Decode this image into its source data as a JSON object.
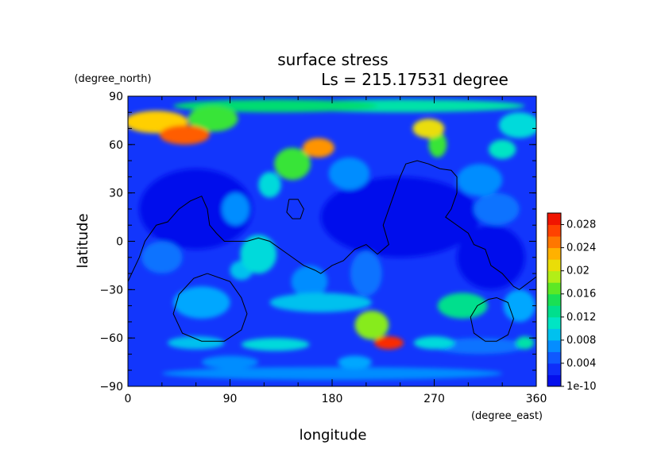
{
  "chart_data": {
    "type": "heatmap",
    "title": "surface stress",
    "subtitle": "Ls = 215.17531 degree",
    "xlabel": "longitude",
    "ylabel": "latitude",
    "x_unit": "(degree_east)",
    "y_unit": "(degree_north)",
    "xlim": [
      0,
      360
    ],
    "ylim": [
      -90,
      90
    ],
    "x_ticks": [
      "0",
      "90",
      "180",
      "270",
      "360"
    ],
    "y_ticks": [
      "90",
      "60",
      "30",
      "0",
      "−30",
      "−60",
      "−90"
    ],
    "x_tick_values": [
      0,
      90,
      180,
      270,
      360
    ],
    "y_tick_values": [
      90,
      60,
      30,
      0,
      -30,
      -60,
      -90
    ],
    "colorbar": {
      "min": 0,
      "max": 0.03,
      "labels": [
        "0.028",
        "0.024",
        "0.02",
        "0.016",
        "0.012",
        "0.008",
        "0.004",
        "1e-10"
      ],
      "label_values": [
        0.028,
        0.024,
        0.02,
        0.016,
        0.012,
        0.008,
        0.004,
        0
      ]
    },
    "background_value": 0.0035,
    "features": [
      {
        "lon": 25,
        "lat": 74,
        "value": 0.022,
        "rlon": 28,
        "rlat": 7
      },
      {
        "lon": 50,
        "lat": 66,
        "value": 0.026,
        "rlon": 22,
        "rlat": 6
      },
      {
        "lon": 75,
        "lat": 76,
        "value": 0.016,
        "rlon": 22,
        "rlat": 8
      },
      {
        "lon": 130,
        "lat": 84,
        "value": 0.014,
        "rlon": 90,
        "rlat": 4
      },
      {
        "lon": 240,
        "lat": 84,
        "value": 0.012,
        "rlon": 110,
        "rlat": 4
      },
      {
        "lon": 265,
        "lat": 70,
        "value": 0.021,
        "rlon": 14,
        "rlat": 6
      },
      {
        "lon": 273,
        "lat": 60,
        "value": 0.016,
        "rlon": 8,
        "rlat": 8
      },
      {
        "lon": 345,
        "lat": 72,
        "value": 0.01,
        "rlon": 18,
        "rlat": 8
      },
      {
        "lon": 330,
        "lat": 57,
        "value": 0.011,
        "rlon": 12,
        "rlat": 6
      },
      {
        "lon": 168,
        "lat": 58,
        "value": 0.024,
        "rlon": 14,
        "rlat": 6
      },
      {
        "lon": 145,
        "lat": 48,
        "value": 0.016,
        "rlon": 16,
        "rlat": 10
      },
      {
        "lon": 125,
        "lat": 35,
        "value": 0.01,
        "rlon": 10,
        "rlat": 8
      },
      {
        "lon": 195,
        "lat": 42,
        "value": 0.007,
        "rlon": 18,
        "rlat": 10
      },
      {
        "lon": 310,
        "lat": 38,
        "value": 0.007,
        "rlon": 20,
        "rlat": 10
      },
      {
        "lon": 95,
        "lat": 20,
        "value": 0.007,
        "rlon": 12,
        "rlat": 10
      },
      {
        "lon": 115,
        "lat": -8,
        "value": 0.01,
        "rlon": 16,
        "rlat": 12
      },
      {
        "lon": 100,
        "lat": -18,
        "value": 0.009,
        "rlon": 10,
        "rlat": 6
      },
      {
        "lon": 160,
        "lat": -25,
        "value": 0.007,
        "rlon": 16,
        "rlat": 10
      },
      {
        "lon": 210,
        "lat": -20,
        "value": 0.006,
        "rlon": 14,
        "rlat": 14
      },
      {
        "lon": 325,
        "lat": 20,
        "value": 0.006,
        "rlon": 20,
        "rlat": 10
      },
      {
        "lon": 30,
        "lat": -10,
        "value": 0.006,
        "rlon": 18,
        "rlat": 10
      },
      {
        "lon": 65,
        "lat": -38,
        "value": 0.008,
        "rlon": 25,
        "rlat": 10
      },
      {
        "lon": 170,
        "lat": -38,
        "value": 0.009,
        "rlon": 45,
        "rlat": 6
      },
      {
        "lon": 215,
        "lat": -52,
        "value": 0.018,
        "rlon": 15,
        "rlat": 9
      },
      {
        "lon": 230,
        "lat": -63,
        "value": 0.028,
        "rlon": 13,
        "rlat": 4
      },
      {
        "lon": 295,
        "lat": -40,
        "value": 0.013,
        "rlon": 22,
        "rlat": 8
      },
      {
        "lon": 345,
        "lat": -40,
        "value": 0.008,
        "rlon": 14,
        "rlat": 10
      },
      {
        "lon": 310,
        "lat": -65,
        "value": 0.006,
        "rlon": 40,
        "rlat": 5
      },
      {
        "lon": 60,
        "lat": -63,
        "value": 0.009,
        "rlon": 25,
        "rlat": 4
      },
      {
        "lon": 130,
        "lat": -64,
        "value": 0.01,
        "rlon": 30,
        "rlat": 4
      },
      {
        "lon": 270,
        "lat": -63,
        "value": 0.01,
        "rlon": 18,
        "rlat": 4
      },
      {
        "lon": 350,
        "lat": -63,
        "value": 0.012,
        "rlon": 8,
        "rlat": 4
      },
      {
        "lon": 180,
        "lat": -82,
        "value": 0.007,
        "rlon": 150,
        "rlat": 4
      },
      {
        "lon": 90,
        "lat": -75,
        "value": 0.007,
        "rlon": 25,
        "rlat": 4
      },
      {
        "lon": 200,
        "lat": -75,
        "value": 0.008,
        "rlon": 15,
        "rlat": 4
      },
      {
        "lon": 240,
        "lat": 15,
        "value": 0.001,
        "rlon": 70,
        "rlat": 25
      },
      {
        "lon": 60,
        "lat": 20,
        "value": 0.001,
        "rlon": 50,
        "rlat": 25
      },
      {
        "lon": 320,
        "lat": -10,
        "value": 0.001,
        "rlon": 30,
        "rlat": 20
      }
    ],
    "contour_lines": [
      {
        "name": "landmass-west",
        "points": [
          [
            0,
            -25
          ],
          [
            10,
            -10
          ],
          [
            15,
            0
          ],
          [
            25,
            10
          ],
          [
            35,
            12
          ],
          [
            45,
            20
          ],
          [
            55,
            25
          ],
          [
            65,
            28
          ],
          [
            70,
            20
          ],
          [
            72,
            10
          ],
          [
            78,
            5
          ],
          [
            85,
            0
          ],
          [
            95,
            0
          ],
          [
            105,
            0
          ],
          [
            115,
            2
          ],
          [
            125,
            0
          ],
          [
            135,
            -5
          ],
          [
            145,
            -10
          ],
          [
            155,
            -15
          ],
          [
            165,
            -18
          ],
          [
            170,
            -20
          ],
          [
            180,
            -15
          ],
          [
            190,
            -12
          ],
          [
            200,
            -5
          ],
          [
            210,
            -2
          ],
          [
            220,
            -8
          ],
          [
            230,
            -2
          ],
          [
            225,
            10
          ],
          [
            230,
            20
          ],
          [
            235,
            30
          ],
          [
            240,
            40
          ],
          [
            245,
            48
          ],
          [
            255,
            50
          ],
          [
            265,
            48
          ],
          [
            275,
            45
          ],
          [
            285,
            44
          ],
          [
            290,
            40
          ],
          [
            290,
            30
          ],
          [
            285,
            20
          ],
          [
            280,
            15
          ],
          [
            290,
            10
          ],
          [
            300,
            5
          ],
          [
            305,
            -2
          ],
          [
            315,
            -5
          ],
          [
            320,
            -15
          ],
          [
            330,
            -20
          ],
          [
            340,
            -28
          ],
          [
            345,
            -30
          ],
          [
            360,
            -22
          ]
        ]
      },
      {
        "name": "island-north",
        "points": [
          [
            142,
            26
          ],
          [
            150,
            26
          ],
          [
            155,
            20
          ],
          [
            152,
            14
          ],
          [
            145,
            14
          ],
          [
            140,
            18
          ],
          [
            142,
            26
          ]
        ]
      },
      {
        "name": "ring-south-west",
        "points": [
          [
            70,
            -20
          ],
          [
            90,
            -25
          ],
          [
            100,
            -35
          ],
          [
            105,
            -45
          ],
          [
            100,
            -55
          ],
          [
            85,
            -62
          ],
          [
            65,
            -62
          ],
          [
            48,
            -57
          ],
          [
            40,
            -45
          ],
          [
            45,
            -33
          ],
          [
            58,
            -23
          ],
          [
            70,
            -20
          ]
        ]
      },
      {
        "name": "ring-south-east",
        "points": [
          [
            325,
            -35
          ],
          [
            335,
            -38
          ],
          [
            340,
            -48
          ],
          [
            335,
            -58
          ],
          [
            325,
            -62
          ],
          [
            315,
            -62
          ],
          [
            305,
            -57
          ],
          [
            302,
            -47
          ],
          [
            308,
            -40
          ],
          [
            318,
            -36
          ],
          [
            325,
            -35
          ]
        ]
      }
    ]
  }
}
